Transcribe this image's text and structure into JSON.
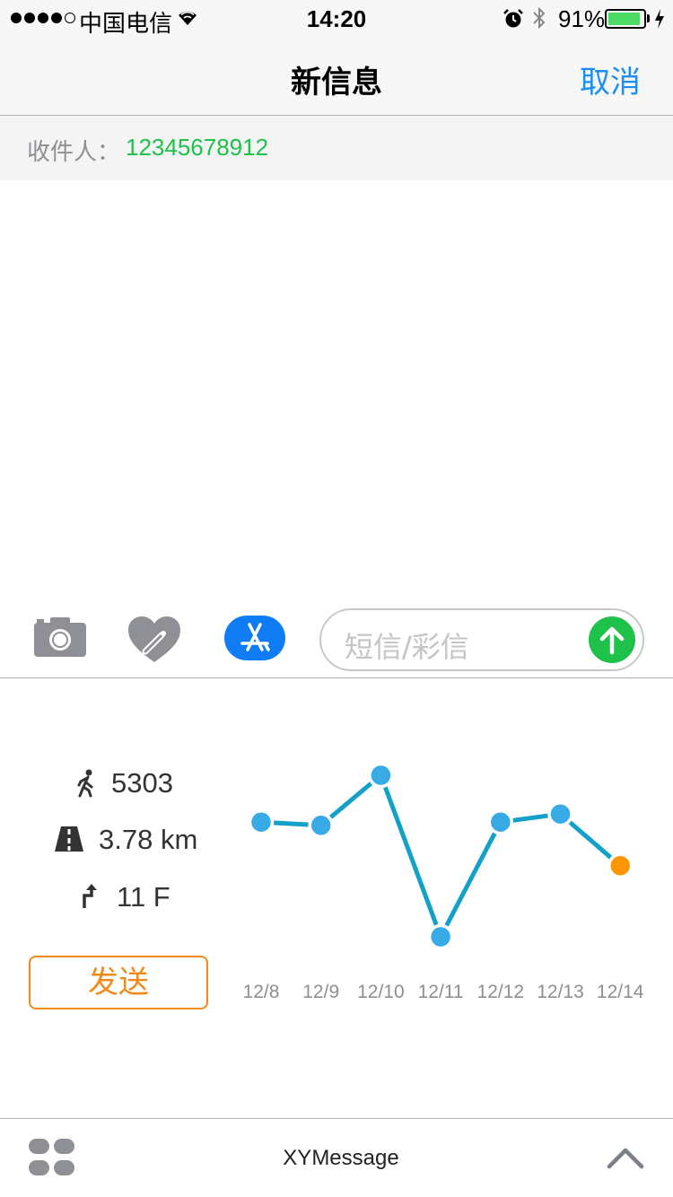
{
  "status_bar": {
    "carrier": "中国电信",
    "time": "14:20",
    "battery_percent": "91%",
    "battery_level": 0.91,
    "icons": [
      "signal-dots-icon",
      "wifi-icon",
      "alarm-icon",
      "bluetooth-icon",
      "battery-icon",
      "charging-bolt-icon"
    ]
  },
  "nav": {
    "title": "新信息",
    "cancel_label": "取消"
  },
  "recipient": {
    "label": "收件人：",
    "value": "12345678912"
  },
  "input_bar": {
    "placeholder": "短信/彩信",
    "icons": [
      "camera-icon",
      "digital-touch-heart-icon",
      "app-store-icon",
      "send-arrow-icon"
    ]
  },
  "stats": {
    "steps": "5303",
    "distance": "3.78 km",
    "floors": "11 F",
    "send_label": "发送",
    "icons": [
      "walking-icon",
      "road-icon",
      "stairs-icon"
    ]
  },
  "chart_data": {
    "type": "line",
    "categories": [
      "12/8",
      "12/9",
      "12/10",
      "12/11",
      "12/12",
      "12/13",
      "12/14"
    ],
    "values": [
      71,
      69,
      100,
      0,
      71,
      76,
      44
    ],
    "ylim": [
      0,
      100
    ],
    "highlight_index": 6,
    "colors": {
      "line": "#13a1c8",
      "point": "#38aae6",
      "highlight_point": "#ff9500",
      "tick_label": "#8e8e93"
    }
  },
  "bottom_bar": {
    "title": "XYMessage",
    "icons": [
      "apps-grid-icon",
      "chevron-up-icon"
    ]
  },
  "colors": {
    "accent_blue": "#1a8ef5",
    "green": "#1ec24b",
    "orange": "#f08a1c"
  }
}
